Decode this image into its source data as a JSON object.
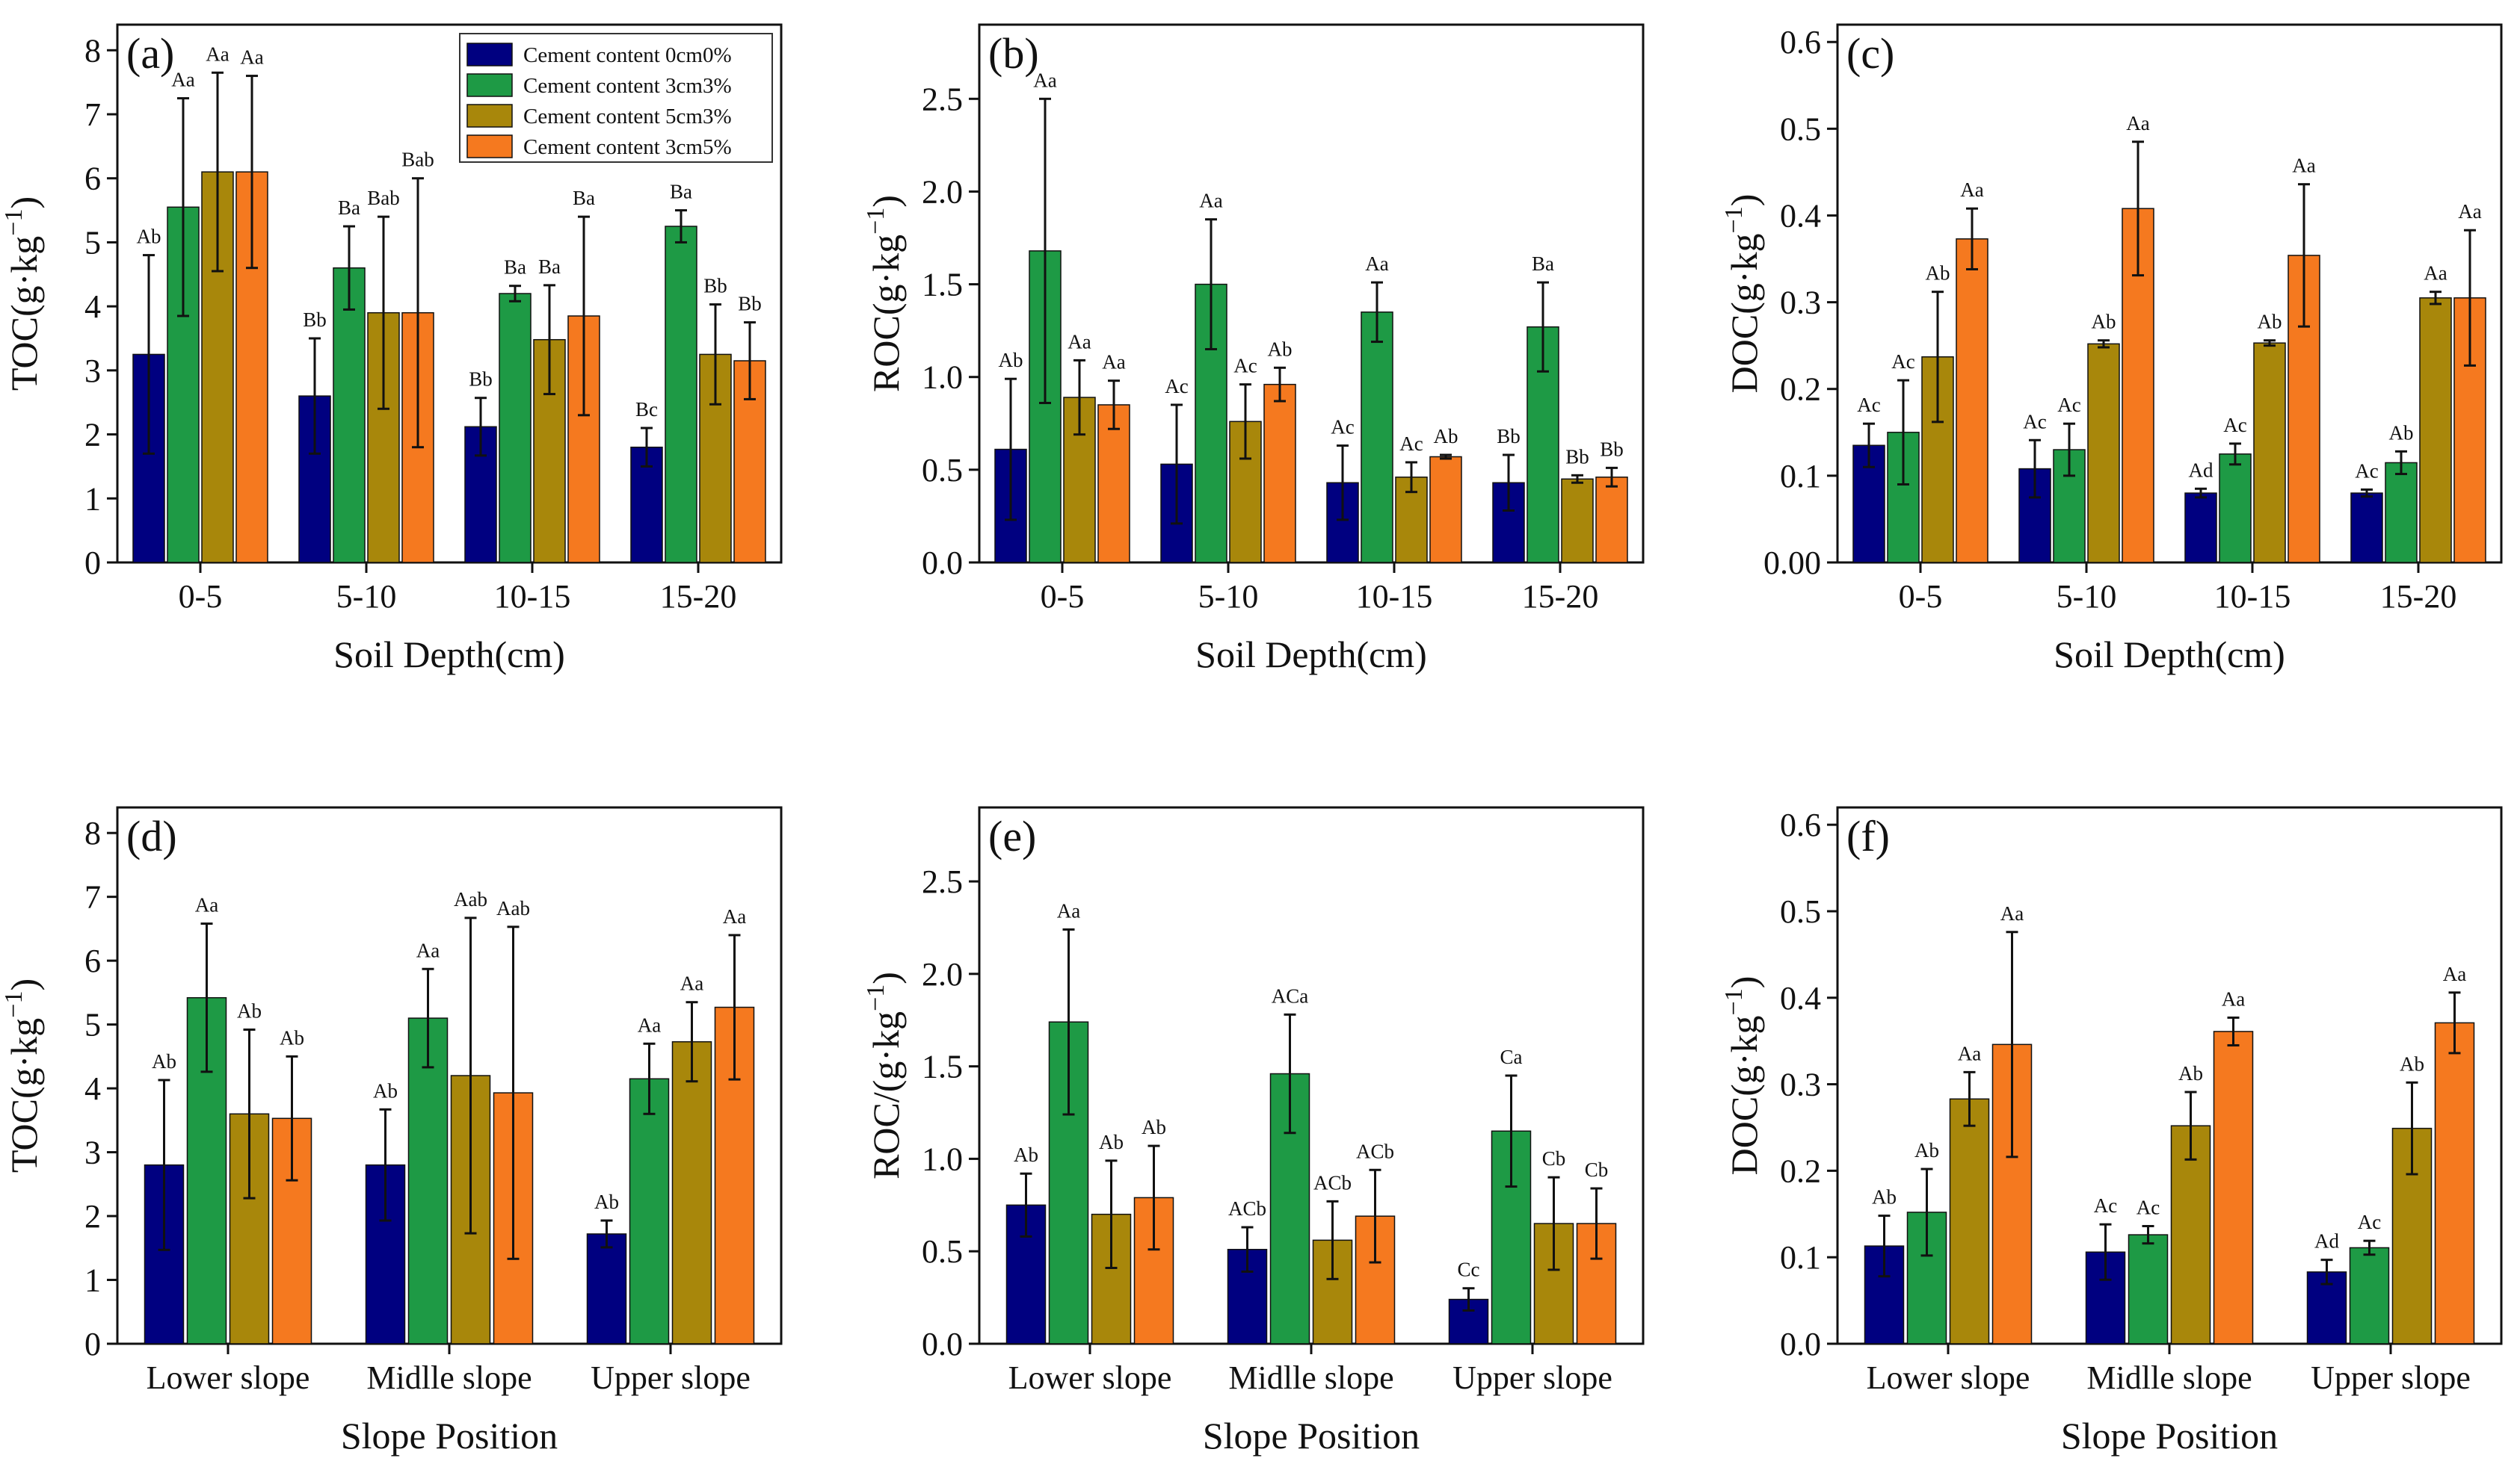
{
  "legend": [
    {
      "label": "Cement content 0cm0%",
      "color": "#000080"
    },
    {
      "label": "Cement content 3cm3%",
      "color": "#1e9a45"
    },
    {
      "label": "Cement content 5cm3%",
      "color": "#a8870b"
    },
    {
      "label": "Cement content 3cm5%",
      "color": "#f5791f"
    }
  ],
  "chart_data": [
    {
      "type": "bar",
      "panel": "(a)",
      "categories": [
        "0-5",
        "5-10",
        "10-15",
        "15-20"
      ],
      "xlabel": "Soil Depth(cm)",
      "ylabel_main": "TOC(g·kg",
      "ylabel_sup": "−1",
      "ylabel_end": ")",
      "ylim": [
        0,
        8.4
      ],
      "yticks": [
        0,
        1,
        2,
        3,
        4,
        5,
        6,
        7,
        8
      ],
      "yticks_labels": [
        "0",
        "1",
        "2",
        "3",
        "4",
        "5",
        "6",
        "7",
        "8"
      ],
      "series": [
        {
          "name": "Cement content 0cm0%",
          "values": [
            3.25,
            2.6,
            2.12,
            1.8
          ],
          "errors": [
            1.55,
            0.9,
            0.45,
            0.3
          ],
          "labels": [
            "Ab",
            "Bb",
            "Bb",
            "Bc"
          ]
        },
        {
          "name": "Cement content 3cm3%",
          "values": [
            5.55,
            4.6,
            4.2,
            5.25
          ],
          "errors": [
            1.7,
            0.65,
            0.12,
            0.25
          ],
          "labels": [
            "Aa",
            "Ba",
            "Ba",
            "Ba"
          ]
        },
        {
          "name": "Cement content 5cm3%",
          "values": [
            6.1,
            3.9,
            3.48,
            3.25
          ],
          "errors": [
            1.55,
            1.5,
            0.85,
            0.78
          ],
          "labels": [
            "Aa",
            "Bab",
            "Ba",
            "Bb"
          ]
        },
        {
          "name": "Cement content 3cm5%",
          "values": [
            6.1,
            3.9,
            3.85,
            3.15
          ],
          "errors": [
            1.5,
            2.1,
            1.55,
            0.6
          ],
          "labels": [
            "Aa",
            "Bab",
            "Ba",
            "Bb"
          ]
        }
      ]
    },
    {
      "type": "bar",
      "panel": "(b)",
      "categories": [
        "0-5",
        "5-10",
        "10-15",
        "15-20"
      ],
      "xlabel": "Soil Depth(cm)",
      "ylabel_main": "ROC(g·kg",
      "ylabel_sup": "−1",
      "ylabel_end": ")",
      "ylim": [
        0,
        2.9
      ],
      "yticks": [
        0,
        0.5,
        1,
        1.5,
        2,
        2.5
      ],
      "yticks_labels": [
        "0.0",
        "0.5",
        "1.0",
        "1.5",
        "2.0",
        "2.5"
      ],
      "series": [
        {
          "name": "Cement content 0cm0%",
          "values": [
            0.61,
            0.53,
            0.43,
            0.43
          ],
          "errors": [
            0.38,
            0.32,
            0.2,
            0.15
          ],
          "labels": [
            "Ab",
            "Ac",
            "Ac",
            "Bb"
          ]
        },
        {
          "name": "Cement content 3cm3%",
          "values": [
            1.68,
            1.5,
            1.35,
            1.27
          ],
          "errors": [
            0.82,
            0.35,
            0.16,
            0.24
          ],
          "labels": [
            "Aa",
            "Aa",
            "Aa",
            "Ba"
          ]
        },
        {
          "name": "Cement content 5cm3%",
          "values": [
            0.89,
            0.76,
            0.46,
            0.45
          ],
          "errors": [
            0.2,
            0.2,
            0.08,
            0.02
          ],
          "labels": [
            "Aa",
            "Ac",
            "Ac",
            "Bb"
          ]
        },
        {
          "name": "Cement content 3cm5%",
          "values": [
            0.85,
            0.96,
            0.57,
            0.46
          ],
          "errors": [
            0.13,
            0.09,
            0.01,
            0.05
          ],
          "labels": [
            "Aa",
            "Ab",
            "Ab",
            "Bb"
          ]
        }
      ]
    },
    {
      "type": "bar",
      "panel": "(c)",
      "categories": [
        "0-5",
        "5-10",
        "10-15",
        "15-20"
      ],
      "xlabel": "Soil Depth(cm)",
      "ylabel_main": "DOC(g·kg",
      "ylabel_sup": "−1",
      "ylabel_end": ")",
      "ylim": [
        0,
        0.62
      ],
      "yticks": [
        0,
        0.1,
        0.2,
        0.3,
        0.4,
        0.5,
        0.6
      ],
      "yticks_labels": [
        "0.00",
        "0.1",
        "0.2",
        "0.3",
        "0.4",
        "0.5",
        "0.6"
      ],
      "series": [
        {
          "name": "Cement content 0cm0%",
          "values": [
            0.135,
            0.108,
            0.08,
            0.08
          ],
          "errors": [
            0.025,
            0.033,
            0.005,
            0.004
          ],
          "labels": [
            "Ac",
            "Ac",
            "Ad",
            "Ac"
          ]
        },
        {
          "name": "Cement content 3cm3%",
          "values": [
            0.15,
            0.13,
            0.125,
            0.115
          ],
          "errors": [
            0.06,
            0.03,
            0.012,
            0.013
          ],
          "labels": [
            "Ac",
            "Ac",
            "Ac",
            "Ab"
          ]
        },
        {
          "name": "Cement content 5cm3%",
          "values": [
            0.237,
            0.252,
            0.253,
            0.305
          ],
          "errors": [
            0.075,
            0.004,
            0.003,
            0.007
          ],
          "labels": [
            "Ab",
            "Ab",
            "Ab",
            "Aa"
          ]
        },
        {
          "name": "Cement content 3cm5%",
          "values": [
            0.373,
            0.408,
            0.354,
            0.305
          ],
          "errors": [
            0.035,
            0.077,
            0.082,
            0.078
          ],
          "labels": [
            "Aa",
            "Aa",
            "Aa",
            "Aa"
          ]
        }
      ]
    },
    {
      "type": "bar",
      "panel": "(d)",
      "categories": [
        "Lower slope",
        "Midlle slope",
        "Upper slope"
      ],
      "xlabel": "Slope Position",
      "ylabel_main": "TOC(g·kg",
      "ylabel_sup": "−1",
      "ylabel_end": ")",
      "ylim": [
        0,
        8.4
      ],
      "yticks": [
        0,
        1,
        2,
        3,
        4,
        5,
        6,
        7,
        8
      ],
      "yticks_labels": [
        "0",
        "1",
        "2",
        "3",
        "4",
        "5",
        "6",
        "7",
        "8"
      ],
      "series": [
        {
          "name": "Cement content 0cm0%",
          "values": [
            2.8,
            2.8,
            1.72
          ],
          "errors": [
            1.33,
            0.87,
            0.21
          ],
          "labels": [
            "Ab",
            "Ab",
            "Ab"
          ]
        },
        {
          "name": "Cement content 3cm3%",
          "values": [
            5.42,
            5.1,
            4.15
          ],
          "errors": [
            1.16,
            0.77,
            0.55
          ],
          "labels": [
            "Aa",
            "Aa",
            "Aa"
          ]
        },
        {
          "name": "Cement content 5cm3%",
          "values": [
            3.6,
            4.2,
            4.73
          ],
          "errors": [
            1.32,
            2.47,
            0.62
          ],
          "labels": [
            "Ab",
            "Aab",
            "Aa"
          ]
        },
        {
          "name": "Cement content 3cm5%",
          "values": [
            3.53,
            3.93,
            5.27
          ],
          "errors": [
            0.97,
            2.6,
            1.13
          ],
          "labels": [
            "Ab",
            "Aab",
            "Aa"
          ]
        }
      ]
    },
    {
      "type": "bar",
      "panel": "(e)",
      "categories": [
        "Lower slope",
        "Midlle slope",
        "Upper slope"
      ],
      "xlabel": "Slope Position",
      "ylabel_main": "ROC/(g·kg",
      "ylabel_sup": "−1",
      "ylabel_end": ")",
      "ylim": [
        0,
        2.9
      ],
      "yticks": [
        0,
        0.5,
        1,
        1.5,
        2,
        2.5
      ],
      "yticks_labels": [
        "0.0",
        "0.5",
        "1.0",
        "1.5",
        "2.0",
        "2.5"
      ],
      "series": [
        {
          "name": "Cement content 0cm0%",
          "values": [
            0.75,
            0.51,
            0.24
          ],
          "errors": [
            0.17,
            0.12,
            0.06
          ],
          "labels": [
            "Ab",
            "ACb",
            "Cc"
          ]
        },
        {
          "name": "Cement content 3cm3%",
          "values": [
            1.74,
            1.46,
            1.15
          ],
          "errors": [
            0.5,
            0.32,
            0.3
          ],
          "labels": [
            "Aa",
            "ACa",
            "Ca"
          ]
        },
        {
          "name": "Cement content 5cm3%",
          "values": [
            0.7,
            0.56,
            0.65
          ],
          "errors": [
            0.29,
            0.21,
            0.25
          ],
          "labels": [
            "Ab",
            "ACb",
            "Cb"
          ]
        },
        {
          "name": "Cement content 3cm5%",
          "values": [
            0.79,
            0.69,
            0.65
          ],
          "errors": [
            0.28,
            0.25,
            0.19
          ],
          "labels": [
            "Ab",
            "ACb",
            "Cb"
          ]
        }
      ]
    },
    {
      "type": "bar",
      "panel": "(f)",
      "categories": [
        "Lower slope",
        "Midlle slope",
        "Upper slope"
      ],
      "xlabel": "Slope Position",
      "ylabel_main": "DOC(g·kg",
      "ylabel_sup": "−1",
      "ylabel_end": ")",
      "ylim": [
        0,
        0.62
      ],
      "yticks": [
        0,
        0.1,
        0.2,
        0.3,
        0.4,
        0.5,
        0.6
      ],
      "yticks_labels": [
        "0.0",
        "0.1",
        "0.2",
        "0.3",
        "0.4",
        "0.5",
        "0.6"
      ],
      "series": [
        {
          "name": "Cement content 0cm0%",
          "values": [
            0.113,
            0.106,
            0.083
          ],
          "errors": [
            0.035,
            0.032,
            0.014
          ],
          "labels": [
            "Ab",
            "Ac",
            "Ad"
          ]
        },
        {
          "name": "Cement content 3cm3%",
          "values": [
            0.152,
            0.126,
            0.111
          ],
          "errors": [
            0.05,
            0.01,
            0.008
          ],
          "labels": [
            "Ab",
            "Ac",
            "Ac"
          ]
        },
        {
          "name": "Cement content 5cm3%",
          "values": [
            0.283,
            0.252,
            0.249
          ],
          "errors": [
            0.031,
            0.039,
            0.053
          ],
          "labels": [
            "Aa",
            "Ab",
            "Ab"
          ]
        },
        {
          "name": "Cement content 3cm5%",
          "values": [
            0.346,
            0.361,
            0.371
          ],
          "errors": [
            0.13,
            0.016,
            0.035
          ],
          "labels": [
            "Aa",
            "Aa",
            "Aa"
          ]
        }
      ]
    }
  ]
}
